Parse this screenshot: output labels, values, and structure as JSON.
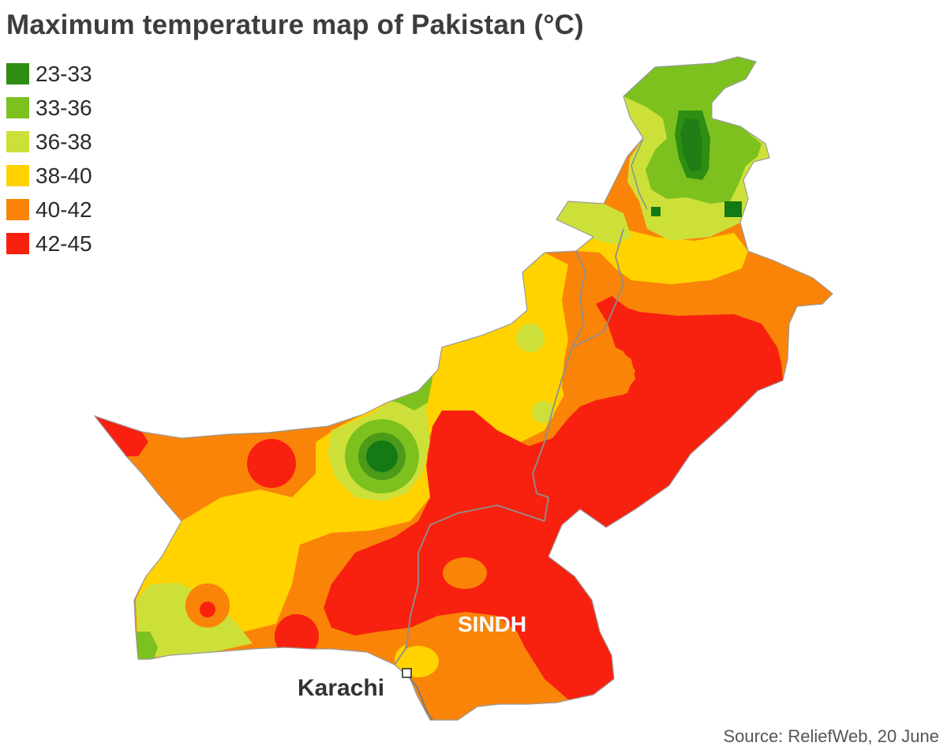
{
  "title": "Maximum temperature map of Pakistan (°C)",
  "legend": [
    {
      "range": "23-33",
      "color": "#2f8d13"
    },
    {
      "range": "33-36",
      "color": "#7cc11e"
    },
    {
      "range": "36-38",
      "color": "#cde03a"
    },
    {
      "range": "38-40",
      "color": "#ffd200"
    },
    {
      "range": "40-42",
      "color": "#f98408"
    },
    {
      "range": "42-45",
      "color": "#f8210f"
    }
  ],
  "labels": {
    "region": "SINDH",
    "city": "Karachi"
  },
  "source": "Source: ReliefWeb, 20 June"
}
